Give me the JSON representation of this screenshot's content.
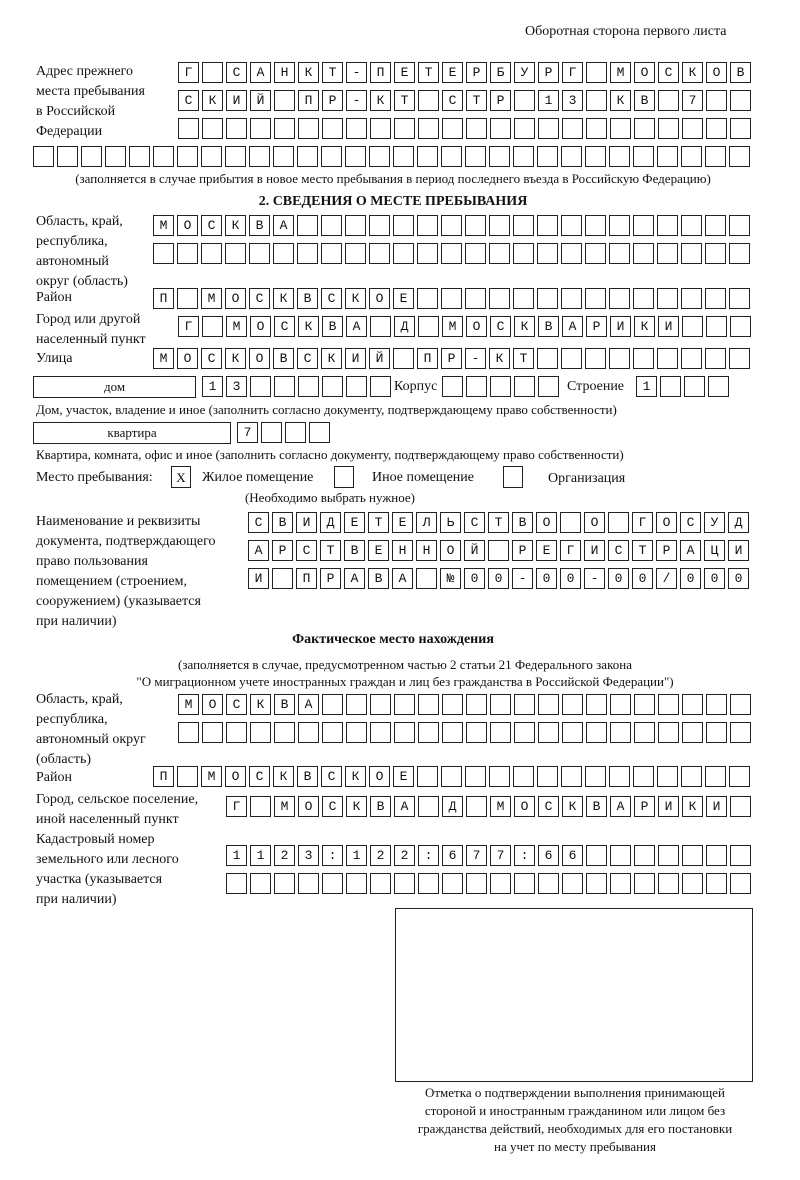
{
  "header": {
    "page_caption": "Оборотная сторона первого листа"
  },
  "previous_address": {
    "label_lines": [
      "Адрес прежнего",
      "места пребывания",
      "в Российской",
      "Федерации"
    ],
    "rows": [
      "Г САНКТ-ПЕТЕРБУРГ МОСКОВ",
      "СКИЙ ПР-КТ СТР 13 КВ 7",
      "",
      ""
    ],
    "note": "(заполняется в случае прибытия в новое место пребывания в период последнего въезда в Российскую Федерацию)"
  },
  "section2": {
    "title": "2. СВЕДЕНИЯ О МЕСТЕ ПРЕБЫВАНИЯ",
    "region_label_lines": [
      "Область, край,",
      "республика,",
      "автономный",
      "округ (область)"
    ],
    "region_rows": [
      "МОСКВА",
      ""
    ],
    "district_label": "Район",
    "district_row": "П МОСКВСКОЕ",
    "city_label_lines": [
      "Город или другой",
      "населенный пункт"
    ],
    "city_row": "Г МОСКВА Д МОСКВАРИКИ",
    "street_label": "Улица",
    "street_row": "МОСКОВСКИЙ ПР-КТ",
    "house_type": "дом",
    "house_number": "13",
    "korpus_label": "Корпус",
    "korpus_value": "",
    "building_label": "Строение",
    "building_value": "1",
    "house_note": "Дом, участок, владение и иное (заполнить согласно документу, подтверждающему право собственности)",
    "apt_type": "квартира",
    "apt_number": "7",
    "apt_note": "Квартира, комната, офис и иное (заполнить согласно документу, подтверждающему право собственности)",
    "stay_place_label": "Место пребывания:",
    "options": [
      {
        "label": "Жилое помещение",
        "mark": "X",
        "checked": true
      },
      {
        "label": "Иное помещение",
        "mark": "",
        "checked": false
      },
      {
        "label": "Организация",
        "mark": "",
        "checked": false
      }
    ],
    "choose_note": "(Необходимо выбрать нужное)",
    "doc_label_lines": [
      "Наименование и реквизиты",
      "документа, подтверждающего",
      "право пользования",
      "помещением (строением,",
      "сооружением) (указывается",
      "при наличии)"
    ],
    "doc_rows": [
      "СВИДЕТЕЛЬСТВО О ГОСУД",
      "АРСТВЕННОЙ РЕГИСТРАЦИ",
      "И ПРАВА №00-00-00/000"
    ]
  },
  "actual": {
    "title": "Фактическое место нахождения",
    "note_lines": [
      "(заполняется в случае, предусмотренном частью 2 статьи 21 Федерального закона",
      "\"О миграционном учете иностранных граждан и лиц без гражданства в Российской Федерации\")"
    ],
    "region_label_lines": [
      "Область, край,",
      "республика,",
      "автономный округ",
      "(область)"
    ],
    "region_rows": [
      "МОСКВА",
      ""
    ],
    "district_label": "Район",
    "district_row": "П МОСКВСКОЕ",
    "city_label_lines": [
      "Город, сельское поселение,",
      "иной населенный пункт"
    ],
    "city_row": "Г МОСКВА Д МОСКВАРИКИ",
    "cadastral_label_lines": [
      "Кадастровый номер",
      "земельного или лесного",
      "участка (указывается",
      "при наличии)"
    ],
    "cadastral_rows": [
      "1123:122:677:66",
      ""
    ]
  },
  "confirmation": {
    "caption_lines": [
      "Отметка о подтверждении выполнения принимающей",
      "стороной и иностранным гражданином или лицом без",
      "гражданства действий, необходимых для его постановки",
      "на учет по месту пребывания"
    ]
  }
}
